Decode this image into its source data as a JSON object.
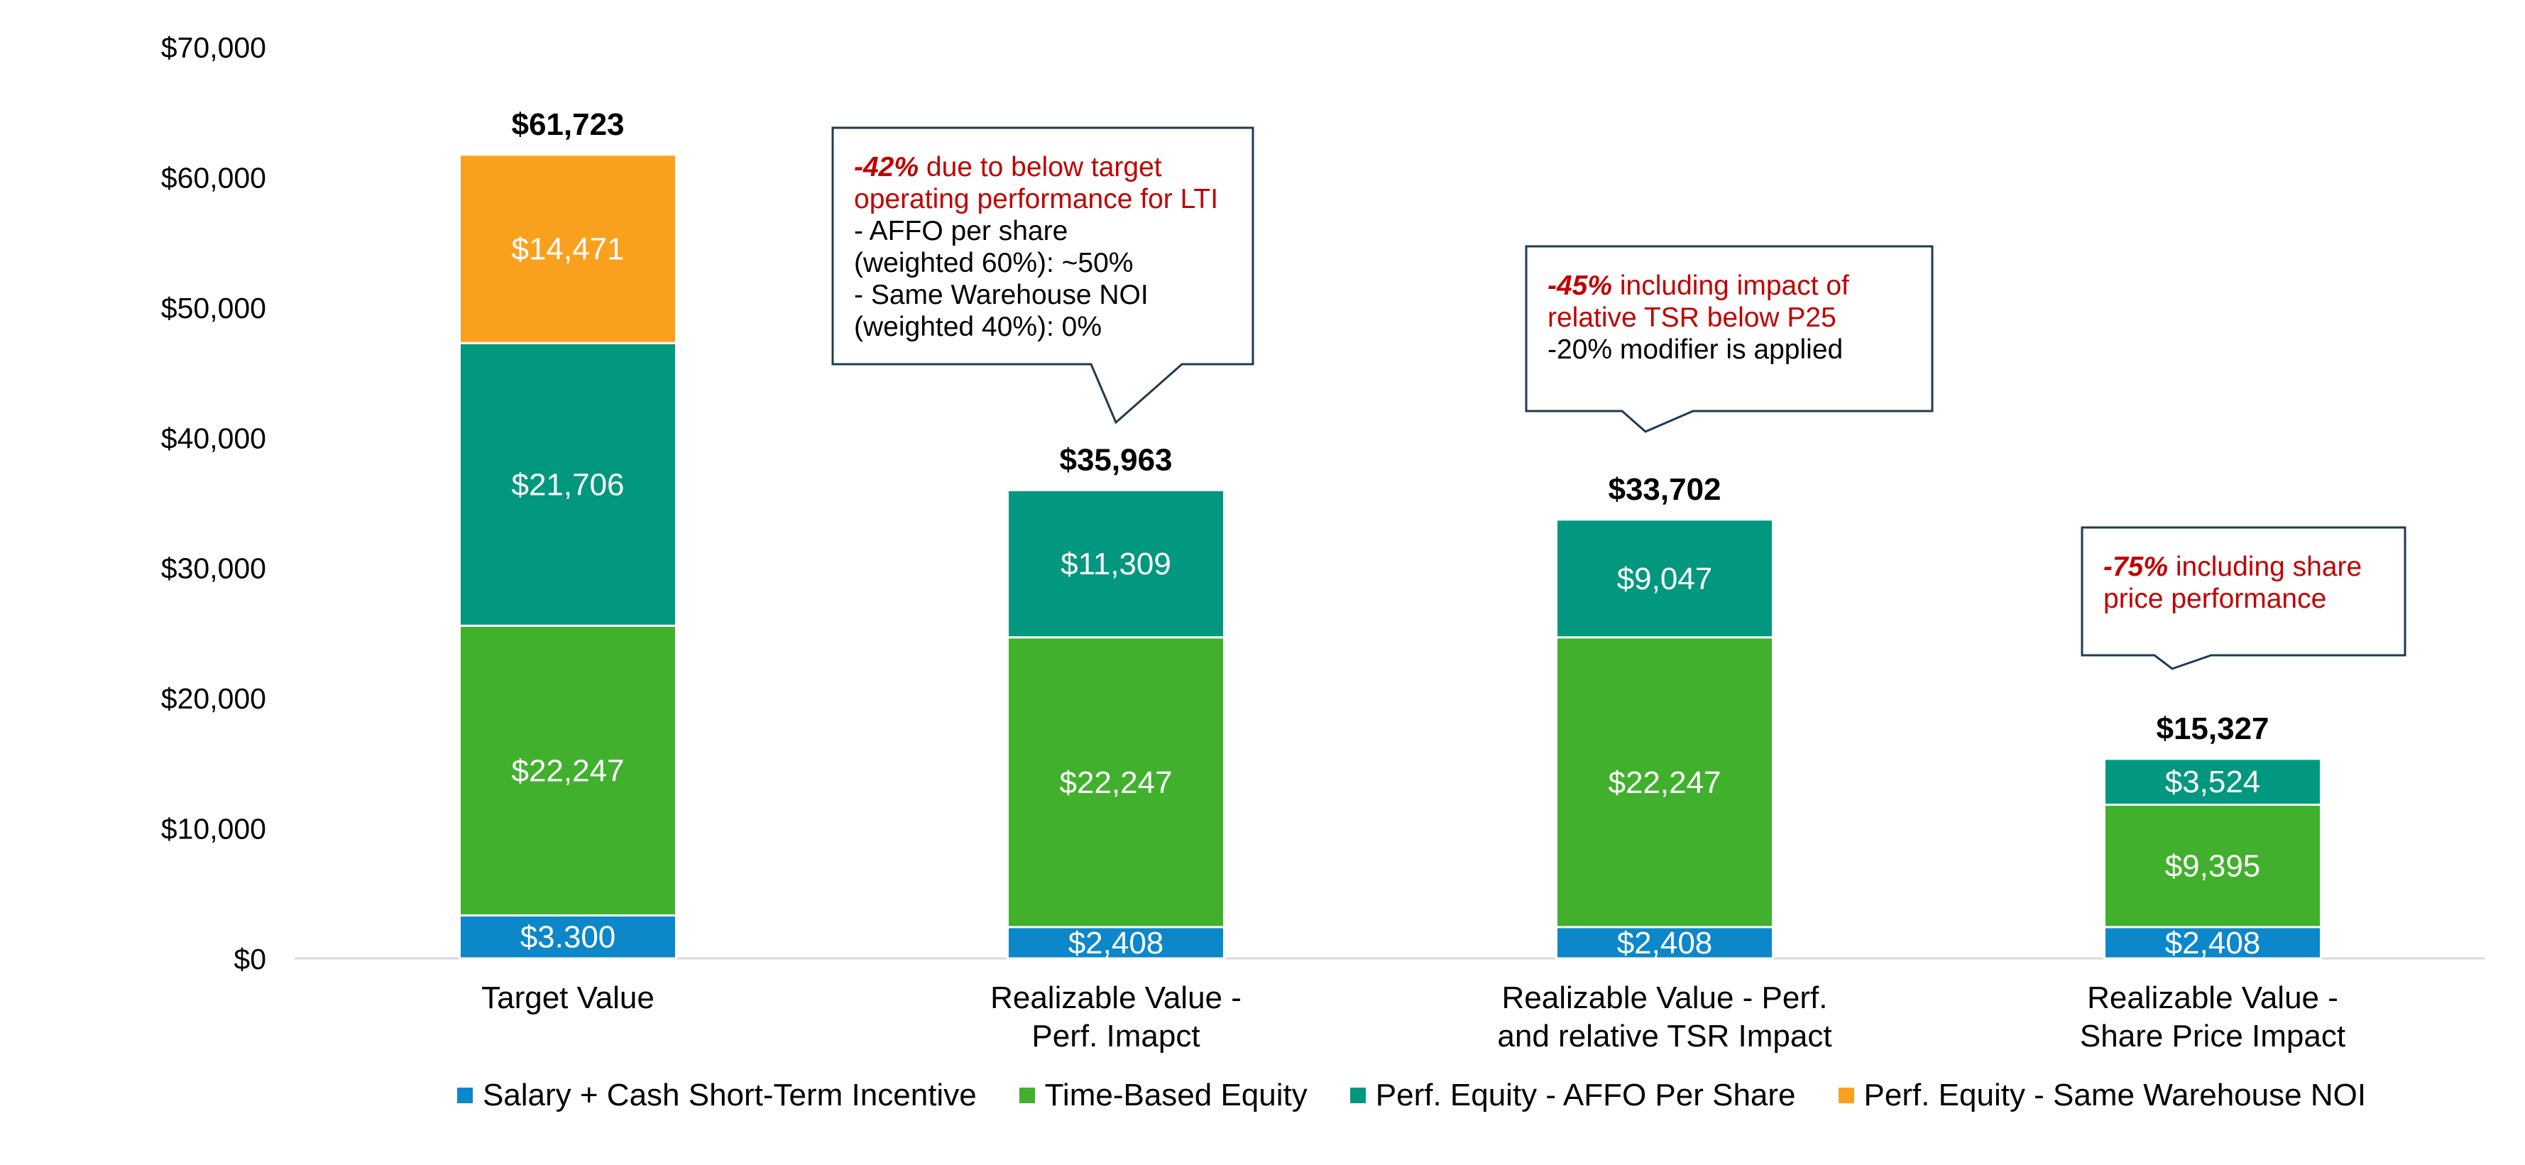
{
  "colors": {
    "salary": "#0C87C9",
    "time_based": "#41B02D",
    "affo": "#02977F",
    "noi": "#F9A11F",
    "axis": "#D9D9D9",
    "callout_border": "#1F3A52",
    "callout_red": "#C00000"
  },
  "chart_data": {
    "type": "bar",
    "stacked": true,
    "title": "",
    "xlabel": "",
    "ylabel": "",
    "ylim": [
      0,
      70000
    ],
    "yticks": [
      0,
      10000,
      20000,
      30000,
      40000,
      50000,
      60000,
      70000
    ],
    "ytick_labels": [
      "$0",
      "$10,000",
      "$20,000",
      "$30,000",
      "$40,000",
      "$50,000",
      "$60,000",
      "$70,000"
    ],
    "grid": false,
    "legend_position": "bottom",
    "categories": [
      [
        "Target Value"
      ],
      [
        "Realizable Value -",
        "Perf. Imapct"
      ],
      [
        "Realizable Value - Perf.",
        "and relative TSR Impact"
      ],
      [
        "Realizable Value -",
        "Share Price Impact"
      ]
    ],
    "series": [
      {
        "name": "Salary + Cash Short-Term Incentive",
        "color_key": "salary",
        "values": [
          3300,
          2408,
          2408,
          2408
        ],
        "labels": [
          "$3.300",
          "$2,408",
          "$2,408",
          "$2,408"
        ]
      },
      {
        "name": "Time-Based Equity",
        "color_key": "time_based",
        "values": [
          22247,
          22247,
          22247,
          9395
        ],
        "labels": [
          "$22,247",
          "$22,247",
          "$22,247",
          "$9,395"
        ]
      },
      {
        "name": "Perf. Equity - AFFO Per Share",
        "color_key": "affo",
        "values": [
          21706,
          11309,
          9047,
          3524
        ],
        "labels": [
          "$21,706",
          "$11,309",
          "$9,047",
          "$3,524"
        ]
      },
      {
        "name": "Perf. Equity - Same Warehouse NOI",
        "color_key": "noi",
        "values": [
          14471,
          0,
          0,
          0
        ],
        "labels": [
          "$14,471",
          "",
          "",
          ""
        ]
      }
    ],
    "totals": [
      61723,
      35963,
      33702,
      15327
    ],
    "total_labels": [
      "$61,723",
      "$35,963",
      "$33,702",
      "$15,327"
    ],
    "annotations": [
      {
        "bar_index": 1,
        "lines": [
          [
            {
              "text": "-42%",
              "style": "red-bold-italic"
            },
            {
              "text": " due to below target",
              "style": "red"
            }
          ],
          [
            {
              "text": "operating performance for LTI",
              "style": "red"
            }
          ],
          [
            {
              "text": "- AFFO per share",
              "style": "black"
            }
          ],
          [
            {
              "text": "(weighted 60%): ~50%",
              "style": "black"
            }
          ],
          [
            {
              "text": "- Same Warehouse NOI",
              "style": "black"
            }
          ],
          [
            {
              "text": "(weighted 40%): 0%",
              "style": "black"
            }
          ]
        ]
      },
      {
        "bar_index": 2,
        "lines": [
          [
            {
              "text": "-45%",
              "style": "red-bold-italic"
            },
            {
              "text": " including impact of",
              "style": "red"
            }
          ],
          [
            {
              "text": "relative TSR below P25",
              "style": "red"
            }
          ],
          [
            {
              "text": "-20% modifier is applied",
              "style": "black"
            }
          ]
        ]
      },
      {
        "bar_index": 3,
        "lines": [
          [
            {
              "text": "-75%",
              "style": "red-bold-italic"
            },
            {
              "text": " including share",
              "style": "red"
            }
          ],
          [
            {
              "text": "price performance",
              "style": "red"
            }
          ]
        ]
      }
    ]
  },
  "legend": {
    "items": [
      {
        "label": "Salary + Cash Short-Term Incentive",
        "color_key": "salary"
      },
      {
        "label": "Time-Based Equity",
        "color_key": "time_based"
      },
      {
        "label": "Perf. Equity - AFFO Per Share",
        "color_key": "affo"
      },
      {
        "label": "Perf. Equity - Same Warehouse NOI",
        "color_key": "noi"
      }
    ]
  }
}
